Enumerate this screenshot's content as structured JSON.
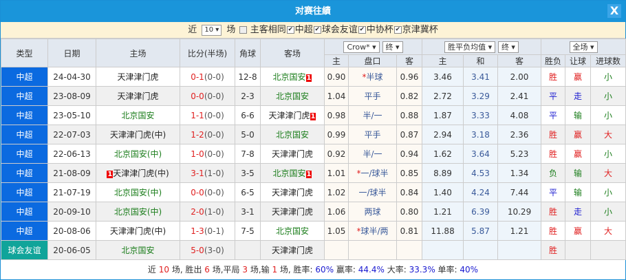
{
  "title": "对赛往績",
  "close_label": "X",
  "filter": {
    "near": "近",
    "count": "10 ▾",
    "unit": "场",
    "same_label": "主客相同",
    "leagues": [
      "中超",
      "球会友谊",
      "中协杯",
      "京津冀杯"
    ],
    "same_checked": false,
    "checked": [
      true,
      true,
      true,
      true
    ]
  },
  "headers": {
    "type": "类型",
    "date": "日期",
    "home": "主场",
    "score": "比分(半场)",
    "corner": "角球",
    "away": "客场",
    "company": "Crow* ▾",
    "stage1": "终 ▾",
    "odds_type": "胜平负均值 ▾",
    "stage2": "终 ▾",
    "period": "全场 ▾",
    "sub": [
      "主",
      "盘口",
      "客",
      "主",
      "和",
      "客",
      "胜负",
      "让球",
      "进球数"
    ]
  },
  "colors": {
    "win": "#e02020",
    "draw": "#1a1ad0",
    "lose": "#1b7d1b",
    "type_league": "#0b6ae0",
    "type_friendly": "#10a49a",
    "title_bar": "#1a95da"
  },
  "rows": [
    {
      "type": "中超",
      "date": "24-04-30",
      "home": "天津津门虎",
      "home_c": "k",
      "home_red": "",
      "score": "0-1",
      "ht": "(0-0)",
      "corner": "12-8",
      "away": "北京国安",
      "away_c": "g",
      "away_red": "1",
      "h": "0.90",
      "line": "半球",
      "star": "*",
      "a": "0.96",
      "w": "3.46",
      "d": "3.41",
      "l": "2.00",
      "res": "胜",
      "res_c": "r",
      "hc": "赢",
      "hc_c": "r",
      "ou": "小",
      "ou_c": "g"
    },
    {
      "type": "中超",
      "date": "23-08-09",
      "home": "天津津门虎",
      "home_c": "k",
      "home_red": "",
      "score": "0-0",
      "ht": "(0-0)",
      "corner": "2-3",
      "away": "北京国安",
      "away_c": "g",
      "away_red": "",
      "h": "1.04",
      "line": "平手",
      "star": "",
      "a": "0.82",
      "w": "2.72",
      "d": "3.29",
      "l": "2.41",
      "res": "平",
      "res_c": "b",
      "hc": "走",
      "hc_c": "b",
      "ou": "小",
      "ou_c": "g"
    },
    {
      "type": "中超",
      "date": "23-05-10",
      "home": "北京国安",
      "home_c": "g",
      "home_red": "",
      "score": "1-1",
      "ht": "(0-0)",
      "corner": "6-6",
      "away": "天津津门虎",
      "away_c": "k",
      "away_red": "1",
      "h": "0.98",
      "line": "半/一",
      "star": "",
      "a": "0.88",
      "w": "1.87",
      "d": "3.33",
      "l": "4.08",
      "res": "平",
      "res_c": "b",
      "hc": "输",
      "hc_c": "g",
      "ou": "小",
      "ou_c": "g"
    },
    {
      "type": "中超",
      "date": "22-07-03",
      "home": "天津津门虎(中)",
      "home_c": "k",
      "home_red": "",
      "score": "1-2",
      "ht": "(0-0)",
      "corner": "5-0",
      "away": "北京国安",
      "away_c": "g",
      "away_red": "",
      "h": "0.99",
      "line": "平手",
      "star": "",
      "a": "0.87",
      "w": "2.94",
      "d": "3.18",
      "l": "2.36",
      "res": "胜",
      "res_c": "r",
      "hc": "赢",
      "hc_c": "r",
      "ou": "大",
      "ou_c": "r"
    },
    {
      "type": "中超",
      "date": "22-06-13",
      "home": "北京国安(中)",
      "home_c": "g",
      "home_red": "",
      "score": "1-0",
      "ht": "(0-0)",
      "corner": "7-8",
      "away": "天津津门虎",
      "away_c": "k",
      "away_red": "",
      "h": "0.92",
      "line": "半/一",
      "star": "",
      "a": "0.94",
      "w": "1.62",
      "d": "3.64",
      "l": "5.23",
      "res": "胜",
      "res_c": "r",
      "hc": "赢",
      "hc_c": "r",
      "ou": "小",
      "ou_c": "g"
    },
    {
      "type": "中超",
      "date": "21-08-09",
      "home": "天津津门虎(中)",
      "home_c": "k",
      "home_red": "1",
      "score": "3-1",
      "ht": "(1-0)",
      "corner": "3-5",
      "away": "北京国安",
      "away_c": "g",
      "away_red": "1",
      "h": "1.01",
      "line": "一/球半",
      "star": "*",
      "a": "0.85",
      "w": "8.89",
      "d": "4.53",
      "l": "1.34",
      "res": "负",
      "res_c": "g",
      "hc": "输",
      "hc_c": "g",
      "ou": "大",
      "ou_c": "r"
    },
    {
      "type": "中超",
      "date": "21-07-19",
      "home": "北京国安(中)",
      "home_c": "g",
      "home_red": "",
      "score": "0-0",
      "ht": "(0-0)",
      "corner": "6-5",
      "away": "天津津门虎",
      "away_c": "k",
      "away_red": "",
      "h": "1.02",
      "line": "一/球半",
      "star": "",
      "a": "0.84",
      "w": "1.40",
      "d": "4.24",
      "l": "7.44",
      "res": "平",
      "res_c": "b",
      "hc": "输",
      "hc_c": "g",
      "ou": "小",
      "ou_c": "g"
    },
    {
      "type": "中超",
      "date": "20-09-10",
      "home": "北京国安(中)",
      "home_c": "g",
      "home_red": "",
      "score": "2-0",
      "ht": "(1-0)",
      "corner": "3-1",
      "away": "天津津门虎",
      "away_c": "k",
      "away_red": "",
      "h": "1.06",
      "line": "两球",
      "star": "",
      "a": "0.80",
      "w": "1.21",
      "d": "6.39",
      "l": "10.29",
      "res": "胜",
      "res_c": "r",
      "hc": "走",
      "hc_c": "b",
      "ou": "小",
      "ou_c": "g"
    },
    {
      "type": "中超",
      "date": "20-08-06",
      "home": "天津津门虎(中)",
      "home_c": "k",
      "home_red": "",
      "score": "1-3",
      "ht": "(0-1)",
      "corner": "7-5",
      "away": "北京国安",
      "away_c": "g",
      "away_red": "",
      "h": "1.05",
      "line": "球半/两",
      "star": "*",
      "a": "0.81",
      "w": "11.88",
      "d": "5.87",
      "l": "1.21",
      "res": "胜",
      "res_c": "r",
      "hc": "赢",
      "hc_c": "r",
      "ou": "大",
      "ou_c": "r"
    },
    {
      "type": "球会友谊",
      "date": "20-06-05",
      "home": "北京国安",
      "home_c": "g",
      "home_red": "",
      "score": "5-0",
      "ht": "(3-0)",
      "corner": "",
      "away": "天津津门虎",
      "away_c": "k",
      "away_red": "",
      "h": "",
      "line": "",
      "star": "",
      "a": "",
      "w": "",
      "d": "",
      "l": "",
      "res": "胜",
      "res_c": "r",
      "hc": "",
      "hc_c": "r",
      "ou": "",
      "ou_c": "g"
    }
  ],
  "footer": {
    "t1": "近 ",
    "n1": "10",
    "t2": " 场, 胜出 ",
    "n2": "6",
    "t3": " 场,平局 ",
    "n3": "3",
    "t4": " 场,输 ",
    "n4": "1",
    "t5": " 场, 胜率: ",
    "p1": "60%",
    "t6": " 赢率: ",
    "p2": "44.4%",
    "t7": " 大率: ",
    "p3": "33.3%",
    "t8": " 单率: ",
    "p4": "40%"
  }
}
